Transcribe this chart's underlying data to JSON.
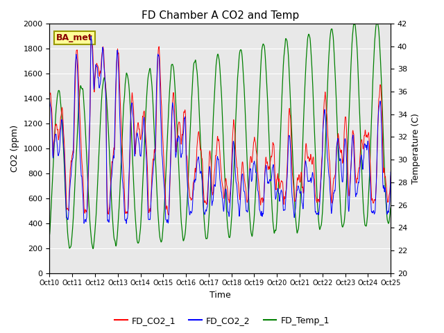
{
  "title": "FD Chamber A CO2 and Temp",
  "xlabel": "Time",
  "ylabel_left": "CO2 (ppm)",
  "ylabel_right": "Temperature (C)",
  "ylim_left": [
    0,
    2000
  ],
  "ylim_right": [
    20,
    42
  ],
  "legend_labels": [
    "FD_CO2_1",
    "FD_CO2_2",
    "FD_Temp_1"
  ],
  "annotation_text": "BA_met",
  "annotation_bg": "#FFFF99",
  "annotation_border": "#999900",
  "bg_color": "#E8E8E8",
  "grid_color": "white",
  "title_fontsize": 11,
  "yticks_left": [
    0,
    200,
    400,
    600,
    800,
    1000,
    1200,
    1400,
    1600,
    1800,
    2000
  ],
  "yticks_right": [
    20,
    22,
    24,
    26,
    28,
    30,
    32,
    34,
    36,
    38,
    40,
    42
  ],
  "n_days": 15,
  "n_points": 3000
}
